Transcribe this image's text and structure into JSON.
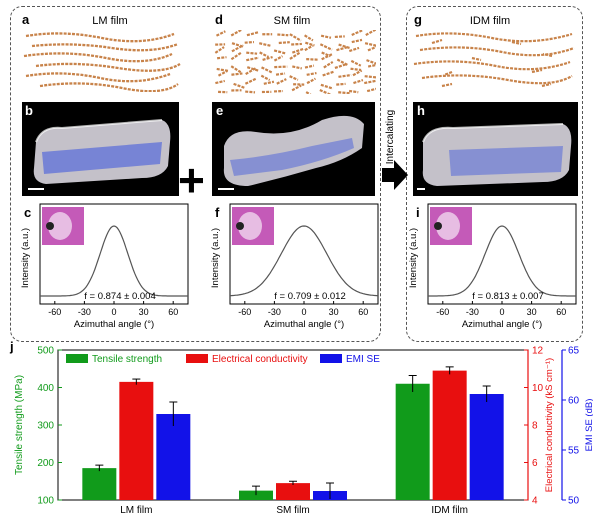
{
  "panels": {
    "a": {
      "label": "a",
      "title": "LM film"
    },
    "b": {
      "label": "b"
    },
    "c": {
      "label": "c",
      "f_text": "f = 0.874 ± 0.004"
    },
    "d": {
      "label": "d",
      "title": "SM film"
    },
    "e": {
      "label": "e"
    },
    "f": {
      "label": "f",
      "f_text": "f = 0.709 ± 0.012"
    },
    "g": {
      "label": "g",
      "title": "IDM film"
    },
    "h": {
      "label": "h"
    },
    "i": {
      "label": "i",
      "f_text": "f = 0.813 ± 0.007"
    },
    "j": {
      "label": "j"
    }
  },
  "arrow_text": "Intercalating",
  "profile_axes": {
    "xlabel": "Azimuthal angle (°)",
    "ylabel": "Intensity (a.u.)",
    "xticks": [
      "-60",
      "-30",
      "0",
      "30",
      "60"
    ]
  },
  "colors": {
    "tensile": "#119b1b",
    "conductivity": "#e80f0f",
    "emi": "#1212e8",
    "fiber": "#c8834a",
    "film": "#e9e6ee",
    "nanotube": "#4a5ee0"
  },
  "chart_data": {
    "type": "bar",
    "categories": [
      "LM film",
      "SM film",
      "IDM film"
    ],
    "legend_position": "top-left",
    "series": [
      {
        "name": "Tensile strength",
        "axis": "left",
        "values": [
          185,
          125,
          410
        ],
        "errors": [
          8,
          12,
          22
        ]
      },
      {
        "name": "Electrical conductivity",
        "axis": "right1",
        "values": [
          10.3,
          4.9,
          10.9
        ],
        "errors": [
          0.15,
          0.1,
          0.2
        ]
      },
      {
        "name": "EMI SE",
        "axis": "right2",
        "values": [
          58.6,
          50.9,
          60.6
        ],
        "errors": [
          1.2,
          0.8,
          0.8
        ]
      }
    ],
    "axes": {
      "left": {
        "label": "Tensile strength (MPa)",
        "ylim": [
          100,
          500
        ],
        "ticks": [
          "100",
          "200",
          "300",
          "400",
          "500"
        ]
      },
      "right1": {
        "label": "Electrical conductivity (kS cm⁻¹)",
        "ylim": [
          4,
          12
        ],
        "ticks": [
          "4",
          "6",
          "8",
          "10",
          "12"
        ]
      },
      "right2": {
        "label": "EMI SE (dB)",
        "ylim": [
          50,
          65
        ],
        "ticks": [
          "50",
          "55",
          "60",
          "65"
        ]
      }
    },
    "profiles": [
      {
        "panel": "c",
        "f": 0.874,
        "f_err": 0.004
      },
      {
        "panel": "f",
        "f": 0.709,
        "f_err": 0.012
      },
      {
        "panel": "i",
        "f": 0.813,
        "f_err": 0.007
      }
    ]
  }
}
